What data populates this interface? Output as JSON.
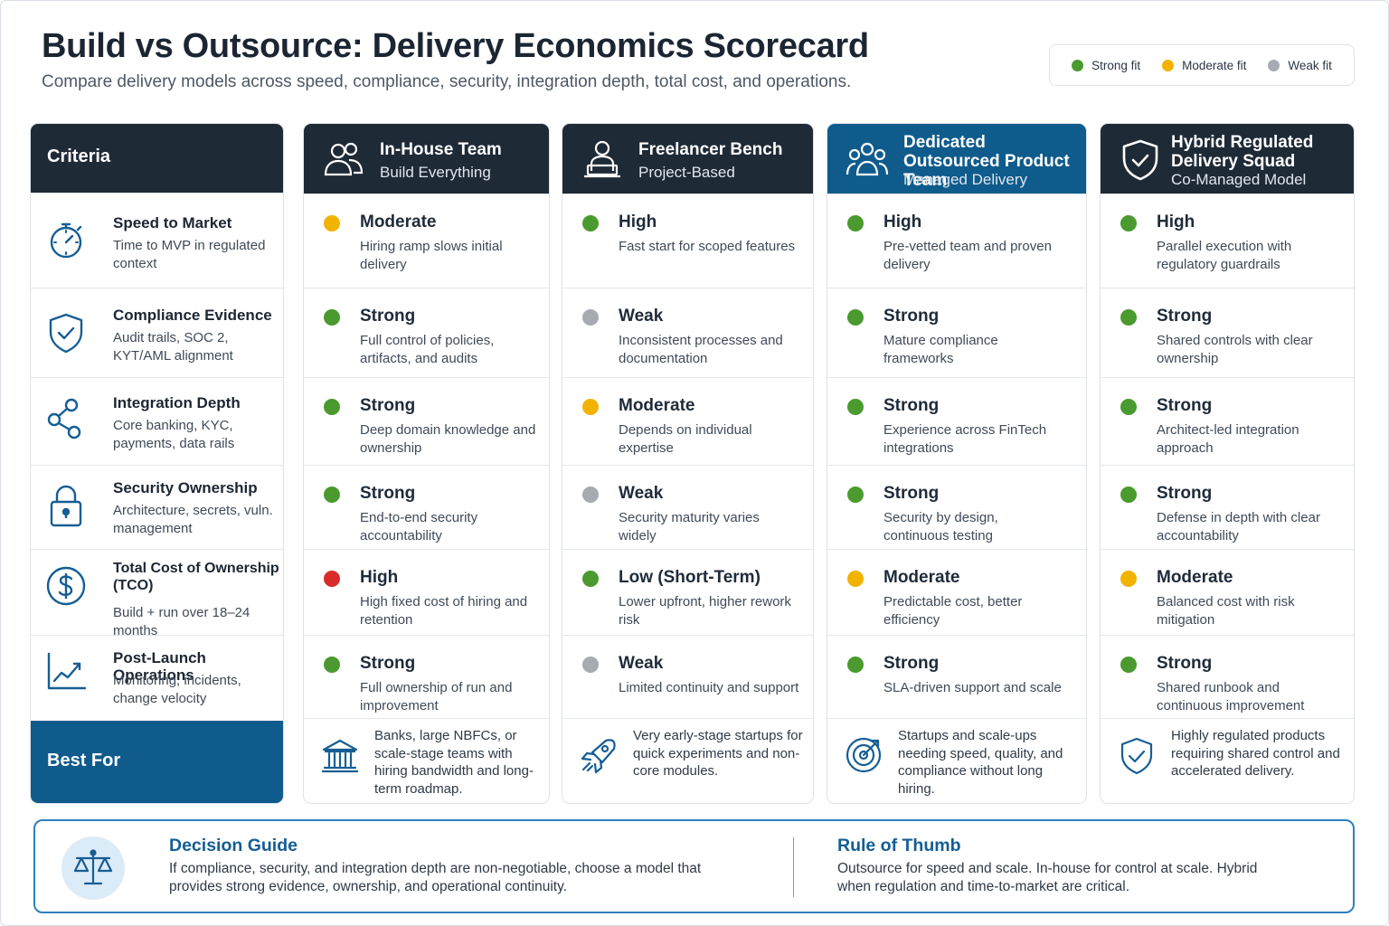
{
  "header": {
    "title": "Build vs Outsource: Delivery Economics Scorecard",
    "subtitle": "Compare delivery models across speed, compliance, security, integration depth, total cost, and operations."
  },
  "legend": [
    {
      "label": "Strong fit",
      "color": "#4a9a2f"
    },
    {
      "label": "Moderate fit",
      "color": "#f2b300"
    },
    {
      "label": "Weak fit",
      "color": "#a7abb1"
    }
  ],
  "criteria": {
    "header": "Criteria",
    "best_for_label": "Best For",
    "rows": [
      {
        "name": "Speed to Market",
        "desc": "Time to MVP in regulated context",
        "icon": "stopwatch-icon"
      },
      {
        "name": "Compliance Evidence",
        "desc": "Audit trails, SOC 2, KYT/AML alignment",
        "icon": "shield-check-icon"
      },
      {
        "name": "Integration Depth",
        "desc": "Core banking, KYC, payments, data rails",
        "icon": "network-icon"
      },
      {
        "name": "Security Ownership",
        "desc": "Architecture, secrets, vuln. management",
        "icon": "padlock-icon"
      },
      {
        "name": "Total Cost of Ownership (TCO)",
        "desc": "Build + run over 18–24 months",
        "icon": "dollar-icon"
      },
      {
        "name": "Post-Launch Operations",
        "desc": "Monitoring, incidents, change velocity",
        "icon": "trend-chart-icon"
      }
    ]
  },
  "models": [
    {
      "title": "In-House Team",
      "subtitle": "Build Everything",
      "icon": "team-icon",
      "cells": [
        {
          "rating": "Moderate",
          "note": "Hiring ramp slows initial delivery",
          "status": "#f2b300"
        },
        {
          "rating": "Strong",
          "note": "Full control of policies, artifacts, and audits",
          "status": "#4a9a2f"
        },
        {
          "rating": "Strong",
          "note": "Deep domain knowledge and ownership",
          "status": "#4a9a2f"
        },
        {
          "rating": "Strong",
          "note": "End-to-end security accountability",
          "status": "#4a9a2f"
        },
        {
          "rating": "High",
          "note": "High fixed cost of hiring and retention",
          "status": "#d92b2b"
        },
        {
          "rating": "Strong",
          "note": "Full ownership of run and improvement",
          "status": "#4a9a2f"
        }
      ],
      "best_for": "Banks, large NBFCs, or scale-stage teams with hiring bandwidth and long-term roadmap.",
      "best_for_icon": "bank-icon"
    },
    {
      "title": "Freelancer Bench",
      "subtitle": "Project-Based",
      "icon": "freelancer-laptop-icon",
      "cells": [
        {
          "rating": "High",
          "note": "Fast start for scoped features",
          "status": "#4a9a2f"
        },
        {
          "rating": "Weak",
          "note": "Inconsistent processes and documentation",
          "status": "#a7abb1"
        },
        {
          "rating": "Moderate",
          "note": "Depends on individual expertise",
          "status": "#f2b300"
        },
        {
          "rating": "Weak",
          "note": "Security maturity varies widely",
          "status": "#a7abb1"
        },
        {
          "rating": "Low (Short-Term)",
          "note": "Lower upfront, higher rework risk",
          "status": "#4a9a2f"
        },
        {
          "rating": "Weak",
          "note": "Limited continuity and support",
          "status": "#a7abb1"
        }
      ],
      "best_for": "Very early-stage startups for quick experiments and non-core modules.",
      "best_for_icon": "rocket-icon"
    },
    {
      "title": "Dedicated Outsourced Product Team",
      "subtitle": "Managed Delivery",
      "icon": "group-icon",
      "cells": [
        {
          "rating": "High",
          "note": "Pre-vetted team and proven delivery",
          "status": "#4a9a2f"
        },
        {
          "rating": "Strong",
          "note": "Mature compliance frameworks",
          "status": "#4a9a2f"
        },
        {
          "rating": "Strong",
          "note": "Experience across FinTech integrations",
          "status": "#4a9a2f"
        },
        {
          "rating": "Strong",
          "note": "Security by design, continuous testing",
          "status": "#4a9a2f"
        },
        {
          "rating": "Moderate",
          "note": "Predictable cost, better efficiency",
          "status": "#f2b300"
        },
        {
          "rating": "Strong",
          "note": "SLA-driven support and scale",
          "status": "#4a9a2f"
        }
      ],
      "best_for": "Startups and scale-ups needing speed, quality, and compliance without long hiring.",
      "best_for_icon": "target-icon"
    },
    {
      "title": "Hybrid Regulated Delivery Squad",
      "subtitle": "Co-Managed Model",
      "icon": "shield-check-icon",
      "cells": [
        {
          "rating": "High",
          "note": "Parallel execution with regulatory guardrails",
          "status": "#4a9a2f"
        },
        {
          "rating": "Strong",
          "note": "Shared controls with clear ownership",
          "status": "#4a9a2f"
        },
        {
          "rating": "Strong",
          "note": "Architect-led integration approach",
          "status": "#4a9a2f"
        },
        {
          "rating": "Strong",
          "note": "Defense in depth with clear accountability",
          "status": "#4a9a2f"
        },
        {
          "rating": "Moderate",
          "note": "Balanced cost with risk mitigation",
          "status": "#f2b300"
        },
        {
          "rating": "Strong",
          "note": "Shared runbook and continuous improvement",
          "status": "#4a9a2f"
        }
      ],
      "best_for": "Highly regulated products requiring shared control and accelerated delivery.",
      "best_for_icon": "shield-check-icon"
    }
  ],
  "footer": {
    "decision_title": "Decision Guide",
    "decision_text": "If compliance, security, and integration depth are non-negotiable, choose a model that provides strong evidence, ownership, and operational continuity.",
    "rule_title": "Rule of Thumb",
    "rule_text": "Outsource for speed and scale. In-house for control at scale. Hybrid when regulation and time-to-market are critical.",
    "icon": "scales-icon"
  }
}
